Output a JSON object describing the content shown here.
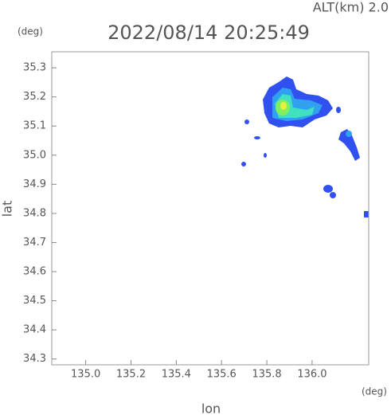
{
  "chart_data": {
    "type": "map",
    "title": "2022/08/14 20:25:49",
    "subtitle": "ALT(km) 2.0",
    "x_label": "lon",
    "y_label": "lat",
    "x_unit": "(deg)",
    "y_unit": "(deg)",
    "xlim": [
      134.85,
      136.25
    ],
    "ylim": [
      34.28,
      35.355
    ],
    "xticks": [
      {
        "value": 135,
        "label": "135.0"
      },
      135.2,
      135.4,
      135.6,
      135.8,
      {
        "value": 136,
        "label": "136.0"
      }
    ],
    "yticks": [
      35.3,
      35.2,
      35.1,
      {
        "value": 35,
        "label": "35.0"
      },
      34.9,
      34.8,
      34.7,
      34.6,
      34.5,
      34.4,
      34.3
    ]
  }
}
